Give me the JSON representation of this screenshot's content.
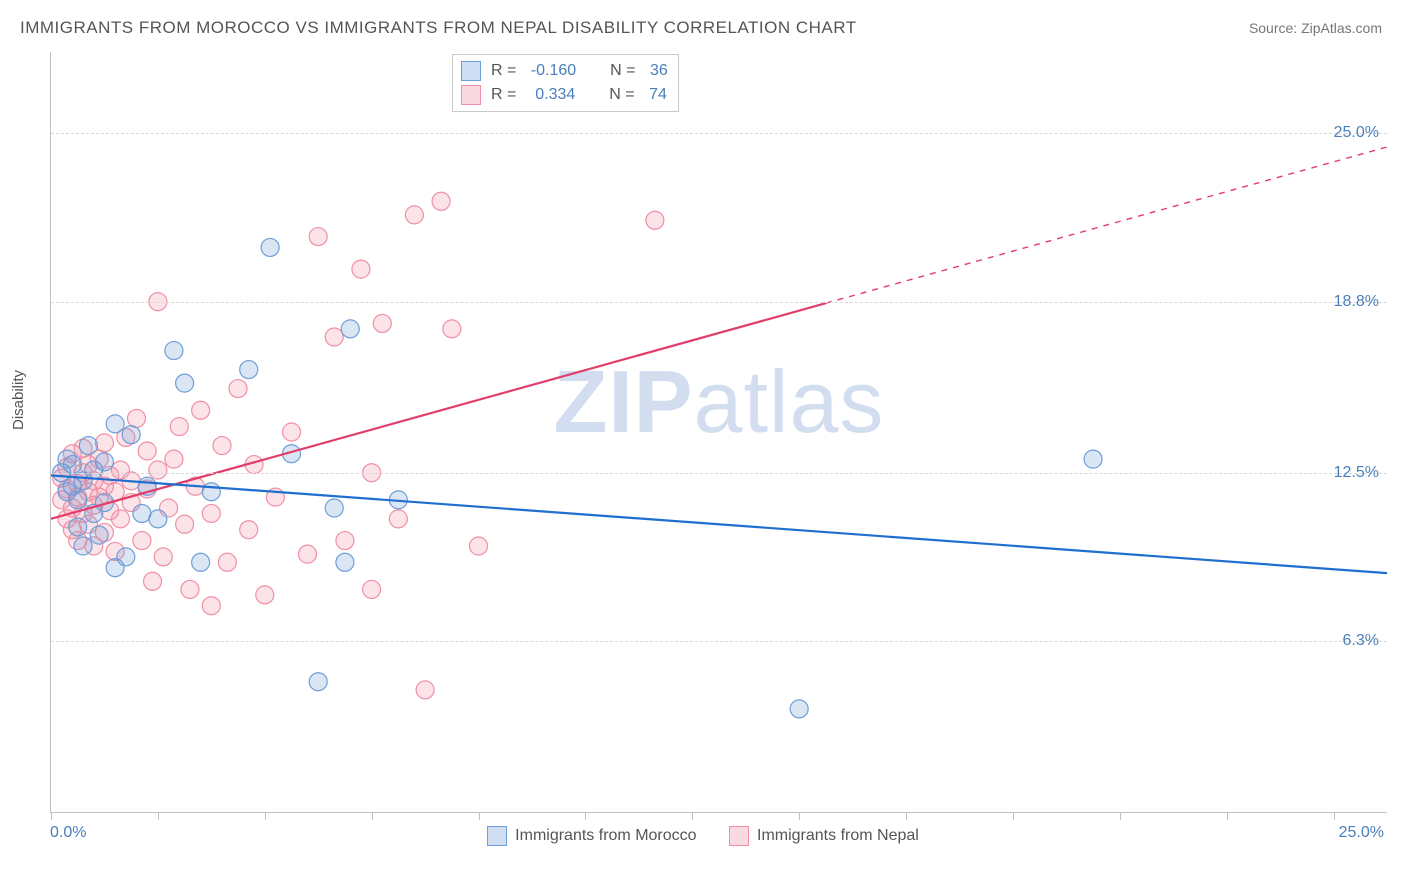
{
  "title": "IMMIGRANTS FROM MOROCCO VS IMMIGRANTS FROM NEPAL DISABILITY CORRELATION CHART",
  "source_label": "Source: ",
  "source_name": "ZipAtlas.com",
  "ylabel": "Disability",
  "watermark_part1": "ZIP",
  "watermark_part2": "atlas",
  "chart": {
    "type": "scatter",
    "xlim": [
      0,
      25
    ],
    "ylim": [
      0,
      28
    ],
    "xtick_positions": [
      0,
      2,
      4,
      6,
      8,
      10,
      12,
      14,
      16,
      18,
      20,
      22,
      24
    ],
    "yticks": [
      {
        "v": 6.3,
        "label": "6.3%"
      },
      {
        "v": 12.5,
        "label": "12.5%"
      },
      {
        "v": 18.8,
        "label": "18.8%"
      },
      {
        "v": 25.0,
        "label": "25.0%"
      }
    ],
    "x_axis_labels": {
      "min": "0.0%",
      "max": "25.0%"
    },
    "background_color": "#ffffff",
    "grid_color": "#d9d9d9",
    "marker_radius": 9,
    "marker_stroke_width": 1.2,
    "marker_fill_opacity": 0.25,
    "line_width": 2.2,
    "series": [
      {
        "key": "morocco",
        "label": "Immigrants from Morocco",
        "color": "#6e9dd8",
        "line_color": "#1f6fd0",
        "R_label": "R = ",
        "R": "-0.160",
        "N_label": "N = ",
        "N": "36",
        "trend": {
          "x1": 0,
          "y1": 12.4,
          "x2": 25,
          "y2": 8.8,
          "dashed": false
        },
        "points": [
          [
            0.2,
            12.5
          ],
          [
            0.3,
            13.0
          ],
          [
            0.3,
            11.8
          ],
          [
            0.4,
            12.0
          ],
          [
            0.4,
            12.8
          ],
          [
            0.5,
            10.5
          ],
          [
            0.5,
            11.5
          ],
          [
            0.6,
            12.2
          ],
          [
            0.6,
            9.8
          ],
          [
            0.7,
            13.5
          ],
          [
            0.8,
            11.0
          ],
          [
            0.8,
            12.6
          ],
          [
            0.9,
            10.2
          ],
          [
            1.0,
            11.4
          ],
          [
            1.0,
            12.9
          ],
          [
            1.2,
            9.0
          ],
          [
            1.2,
            14.3
          ],
          [
            1.4,
            9.4
          ],
          [
            1.5,
            13.9
          ],
          [
            1.7,
            11.0
          ],
          [
            1.8,
            12.0
          ],
          [
            2.0,
            10.8
          ],
          [
            2.3,
            17.0
          ],
          [
            2.5,
            15.8
          ],
          [
            2.8,
            9.2
          ],
          [
            3.0,
            11.8
          ],
          [
            3.7,
            16.3
          ],
          [
            4.1,
            20.8
          ],
          [
            4.5,
            13.2
          ],
          [
            5.0,
            4.8
          ],
          [
            5.3,
            11.2
          ],
          [
            5.5,
            9.2
          ],
          [
            5.6,
            17.8
          ],
          [
            6.5,
            11.5
          ],
          [
            14.0,
            3.8
          ],
          [
            19.5,
            13.0
          ]
        ]
      },
      {
        "key": "nepal",
        "label": "Immigrants from Nepal",
        "color": "#f08fa5",
        "line_color": "#e23e6a",
        "R_label": "R = ",
        "R": "0.334",
        "N_label": "N = ",
        "N": "74",
        "trend": {
          "x1": 0,
          "y1": 10.8,
          "x2": 25,
          "y2": 24.5,
          "dash_from_x": 14.5
        },
        "points": [
          [
            0.2,
            11.5
          ],
          [
            0.2,
            12.3
          ],
          [
            0.3,
            10.8
          ],
          [
            0.3,
            11.9
          ],
          [
            0.3,
            12.7
          ],
          [
            0.4,
            10.4
          ],
          [
            0.4,
            11.2
          ],
          [
            0.4,
            13.2
          ],
          [
            0.5,
            11.6
          ],
          [
            0.5,
            12.1
          ],
          [
            0.5,
            10.0
          ],
          [
            0.6,
            11.0
          ],
          [
            0.6,
            12.5
          ],
          [
            0.6,
            13.4
          ],
          [
            0.7,
            10.6
          ],
          [
            0.7,
            11.8
          ],
          [
            0.7,
            12.8
          ],
          [
            0.8,
            9.8
          ],
          [
            0.8,
            11.3
          ],
          [
            0.8,
            12.2
          ],
          [
            0.9,
            13.0
          ],
          [
            0.9,
            11.6
          ],
          [
            1.0,
            10.3
          ],
          [
            1.0,
            12.0
          ],
          [
            1.0,
            13.6
          ],
          [
            1.1,
            11.1
          ],
          [
            1.1,
            12.4
          ],
          [
            1.2,
            9.6
          ],
          [
            1.2,
            11.8
          ],
          [
            1.3,
            12.6
          ],
          [
            1.3,
            10.8
          ],
          [
            1.4,
            13.8
          ],
          [
            1.5,
            11.4
          ],
          [
            1.5,
            12.2
          ],
          [
            1.6,
            14.5
          ],
          [
            1.7,
            10.0
          ],
          [
            1.8,
            11.9
          ],
          [
            1.8,
            13.3
          ],
          [
            1.9,
            8.5
          ],
          [
            2.0,
            12.6
          ],
          [
            2.0,
            18.8
          ],
          [
            2.1,
            9.4
          ],
          [
            2.2,
            11.2
          ],
          [
            2.3,
            13.0
          ],
          [
            2.4,
            14.2
          ],
          [
            2.5,
            10.6
          ],
          [
            2.6,
            8.2
          ],
          [
            2.7,
            12.0
          ],
          [
            2.8,
            14.8
          ],
          [
            3.0,
            7.6
          ],
          [
            3.0,
            11.0
          ],
          [
            3.2,
            13.5
          ],
          [
            3.3,
            9.2
          ],
          [
            3.5,
            15.6
          ],
          [
            3.7,
            10.4
          ],
          [
            3.8,
            12.8
          ],
          [
            4.0,
            8.0
          ],
          [
            4.2,
            11.6
          ],
          [
            4.5,
            14.0
          ],
          [
            4.8,
            9.5
          ],
          [
            5.0,
            21.2
          ],
          [
            5.3,
            17.5
          ],
          [
            5.5,
            10.0
          ],
          [
            5.8,
            20.0
          ],
          [
            6.0,
            12.5
          ],
          [
            6.0,
            8.2
          ],
          [
            6.2,
            18.0
          ],
          [
            6.5,
            10.8
          ],
          [
            6.8,
            22.0
          ],
          [
            7.0,
            4.5
          ],
          [
            7.3,
            22.5
          ],
          [
            7.5,
            17.8
          ],
          [
            8.0,
            9.8
          ],
          [
            11.3,
            21.8
          ]
        ]
      }
    ]
  }
}
